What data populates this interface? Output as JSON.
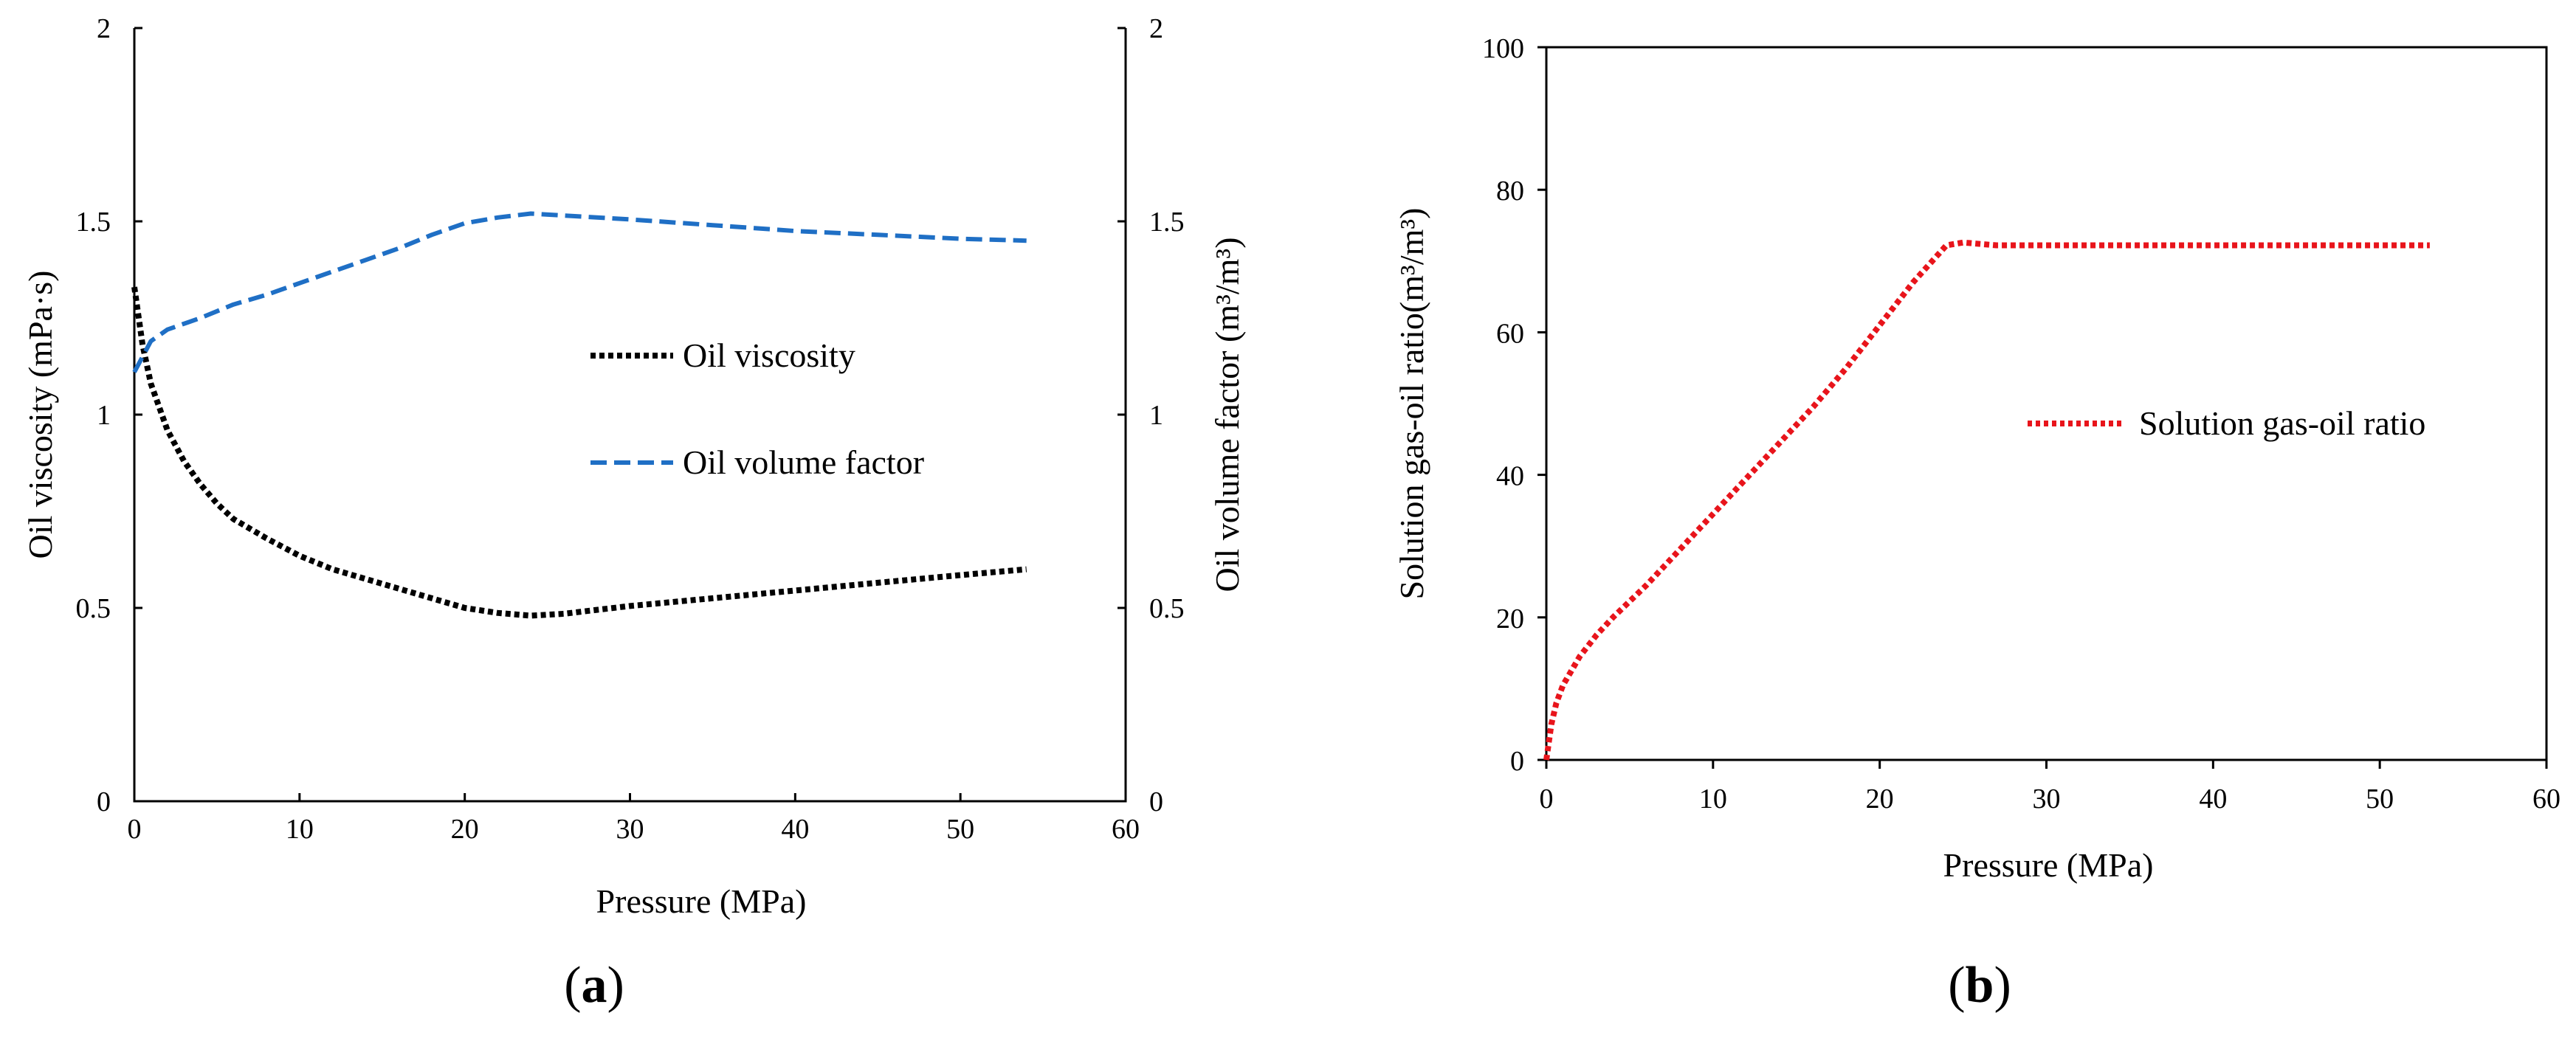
{
  "panel_labels": [
    "a",
    "b"
  ],
  "chart_data": [
    {
      "id": "a",
      "type": "line",
      "xlabel": "Pressure (MPa)",
      "ylabel": "Oil viscosity  (mPa·s)",
      "y2label": "Oil volume  factor  (m³/m³)",
      "xlim": [
        0,
        60
      ],
      "ylim": [
        0,
        2
      ],
      "y2lim": [
        0,
        2
      ],
      "xticks": [
        "0",
        "10",
        "20",
        "30",
        "40",
        "50",
        "60"
      ],
      "yticks": [
        "0",
        "0.5",
        "1",
        "1.5",
        "2"
      ],
      "y2ticks": [
        "0",
        "0.5",
        "1",
        "1.5",
        "2"
      ],
      "grid": false,
      "legend_position": "center",
      "series": [
        {
          "name": "Oil viscosity",
          "axis": "left",
          "color": "#000000",
          "style": "dotted",
          "x": [
            0,
            0.5,
            1,
            2,
            3,
            4,
            5,
            6,
            8,
            10,
            12,
            14,
            16,
            18,
            20,
            22,
            24,
            26,
            28,
            30,
            35,
            40,
            45,
            50,
            54
          ],
          "y": [
            1.33,
            1.18,
            1.08,
            0.96,
            0.88,
            0.82,
            0.77,
            0.73,
            0.68,
            0.635,
            0.6,
            0.575,
            0.55,
            0.525,
            0.5,
            0.487,
            0.48,
            0.485,
            0.495,
            0.505,
            0.525,
            0.545,
            0.565,
            0.585,
            0.6
          ]
        },
        {
          "name": "Oil volume factor",
          "axis": "right",
          "color": "#1F6FC5",
          "style": "dashed",
          "x": [
            0,
            1,
            2,
            4,
            6,
            8,
            10,
            12,
            14,
            16,
            18,
            20,
            22,
            24,
            26,
            30,
            35,
            40,
            45,
            50,
            54
          ],
          "y": [
            1.11,
            1.19,
            1.22,
            1.25,
            1.285,
            1.31,
            1.34,
            1.37,
            1.4,
            1.43,
            1.465,
            1.495,
            1.51,
            1.52,
            1.515,
            1.505,
            1.49,
            1.475,
            1.465,
            1.455,
            1.45
          ]
        }
      ]
    },
    {
      "id": "b",
      "type": "line",
      "xlabel": "Pressure (MPa)",
      "ylabel": "Solution  gas-oil  ratio(m³/m³)",
      "xlim": [
        0,
        60
      ],
      "ylim": [
        0,
        100
      ],
      "xticks": [
        "0",
        "10",
        "20",
        "30",
        "40",
        "50",
        "60"
      ],
      "yticks": [
        "0",
        "20",
        "40",
        "60",
        "80",
        "100"
      ],
      "grid": false,
      "legend_position": "right",
      "series": [
        {
          "name": "Solution gas-oil ratio",
          "color": "#E8141B",
          "style": "dotted",
          "x": [
            0,
            0.3,
            0.6,
            1,
            1.5,
            2,
            3,
            4,
            6,
            8,
            10,
            12,
            14,
            16,
            18,
            20,
            22,
            24,
            25,
            27,
            30,
            35,
            40,
            45,
            50,
            53
          ],
          "y": [
            0,
            5,
            8,
            10.5,
            12.5,
            14.5,
            17.5,
            20,
            24.5,
            29.5,
            34.5,
            39.5,
            44.5,
            49.5,
            55,
            61,
            67,
            72.2,
            72.6,
            72.2,
            72.2,
            72.2,
            72.2,
            72.2,
            72.2,
            72.2
          ]
        }
      ]
    }
  ]
}
